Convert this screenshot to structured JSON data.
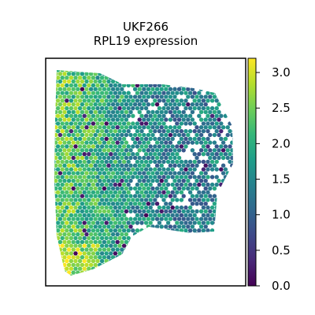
{
  "chart_data": {
    "type": "scatter",
    "subtype": "spatial-hex-spot",
    "title_lines": [
      "UKF266",
      "RPL19 expression"
    ],
    "xlabel": "",
    "ylabel": "",
    "x_ticks": false,
    "y_ticks": false,
    "colormap": "viridis",
    "colormap_stops": [
      "#440154",
      "#482878",
      "#3e4989",
      "#31688e",
      "#26828e",
      "#1f9e89",
      "#35b779",
      "#6ece58",
      "#b5de2b",
      "#fde725"
    ],
    "colorbar": {
      "range": [
        0.0,
        3.2
      ],
      "ticks": [
        0.0,
        0.5,
        1.0,
        1.5,
        2.0,
        2.5,
        3.0
      ],
      "tick_labels": [
        "0.0",
        "0.5",
        "1.0",
        "1.5",
        "2.0",
        "2.5",
        "3.0"
      ],
      "placement": "right"
    },
    "grid": false,
    "spots_summary": {
      "left_region_typical_value": 2.4,
      "right_region_typical_value": 1.4,
      "min_value": 0.0,
      "max_value": 3.2
    }
  }
}
